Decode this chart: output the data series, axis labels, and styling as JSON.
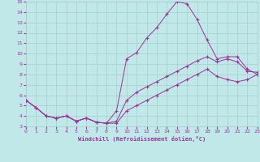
{
  "bg_color": "#c0e8e8",
  "grid_color": "#a8cccc",
  "line_color": "#993399",
  "xlabel": "Windchill (Refroidissement éolien,°C)",
  "xlim": [
    0,
    23
  ],
  "ylim": [
    3,
    15
  ],
  "xticks": [
    0,
    1,
    2,
    3,
    4,
    5,
    6,
    7,
    8,
    9,
    10,
    11,
    12,
    13,
    14,
    15,
    16,
    17,
    18,
    19,
    20,
    21,
    22,
    23
  ],
  "yticks": [
    3,
    4,
    5,
    6,
    7,
    8,
    9,
    10,
    11,
    12,
    13,
    14,
    15
  ],
  "line1_x": [
    0,
    1,
    2,
    3,
    4,
    5,
    6,
    7,
    8,
    9,
    10,
    11,
    12,
    13,
    14,
    15,
    16,
    17,
    18,
    19,
    20,
    21,
    22,
    23
  ],
  "line1_y": [
    5.5,
    4.8,
    4.0,
    3.8,
    4.0,
    3.5,
    3.8,
    3.4,
    3.3,
    4.5,
    9.5,
    10.1,
    11.5,
    12.5,
    13.8,
    15.0,
    14.8,
    13.3,
    11.3,
    9.5,
    9.7,
    9.7,
    8.5,
    8.0
  ],
  "line2_x": [
    0,
    1,
    2,
    3,
    4,
    5,
    6,
    7,
    8,
    9,
    10,
    11,
    12,
    13,
    14,
    15,
    16,
    17,
    18,
    19,
    20,
    21,
    22,
    23
  ],
  "line2_y": [
    5.5,
    4.8,
    4.0,
    3.8,
    4.0,
    3.5,
    3.8,
    3.4,
    3.3,
    3.5,
    5.5,
    6.3,
    6.8,
    7.3,
    7.8,
    8.3,
    8.8,
    9.3,
    9.7,
    9.2,
    9.5,
    9.2,
    8.3,
    8.2
  ],
  "line3_x": [
    0,
    1,
    2,
    3,
    4,
    5,
    6,
    7,
    8,
    9,
    10,
    11,
    12,
    13,
    14,
    15,
    16,
    17,
    18,
    19,
    20,
    21,
    22,
    23
  ],
  "line3_y": [
    5.5,
    4.8,
    4.0,
    3.8,
    4.0,
    3.5,
    3.8,
    3.4,
    3.3,
    3.3,
    4.5,
    5.0,
    5.5,
    6.0,
    6.5,
    7.0,
    7.5,
    8.0,
    8.5,
    7.8,
    7.5,
    7.3,
    7.5,
    8.0
  ]
}
